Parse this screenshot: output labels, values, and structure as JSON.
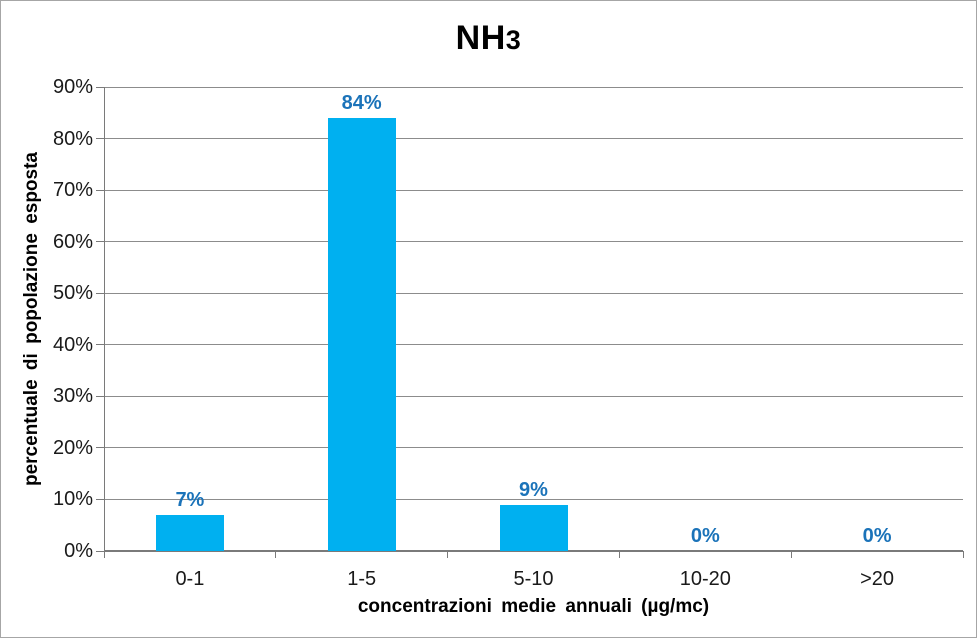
{
  "canvas": {
    "background": "#FFFFFF",
    "border_color": "#A6A6A6"
  },
  "chart_data": {
    "type": "bar",
    "title": {
      "main": "NH",
      "subscript": "3"
    },
    "categories": [
      "0-1",
      "1-5",
      "5-10",
      "10-20",
      ">20"
    ],
    "values": [
      7,
      84,
      9,
      0,
      0
    ],
    "data_labels": [
      "7%",
      "84%",
      "9%",
      "0%",
      "0%"
    ],
    "xlabel": "concentrazioni medie annuali (µg/mc)",
    "ylabel": "percentuale di popolazione esposta",
    "y_ticks": [
      "0%",
      "10%",
      "20%",
      "30%",
      "40%",
      "50%",
      "60%",
      "70%",
      "80%",
      "90%"
    ],
    "ylim": [
      0,
      90
    ],
    "grid": true,
    "legend": "none",
    "colors": {
      "bar": "#00B0F0",
      "data_label": "#1B73B9",
      "gridline": "#8C8C8C",
      "axis": "#7A7A7A",
      "tick_text": "#1A1A1A",
      "title_text": "#000000"
    }
  }
}
